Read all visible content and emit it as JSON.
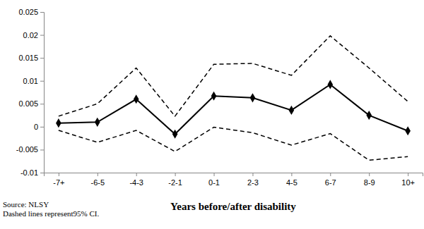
{
  "chart_data": {
    "type": "line",
    "x_label": "Years before/after disability",
    "annotations": [
      "Source: NLSY",
      "Dashed lines represent95% CI."
    ],
    "categories": [
      "-7+",
      "-6-5",
      "-4-3",
      "-2-1",
      "0-1",
      "2-3",
      "4-5",
      "6-7",
      "8-9",
      "10+"
    ],
    "series": [
      {
        "color": "#000000",
        "line_style": "solid",
        "marker": "diamond",
        "values": [
          0.0008,
          0.001,
          0.006,
          -0.0016,
          0.0067,
          0.0063,
          0.0036,
          0.0092,
          0.0025,
          -0.0009
        ]
      },
      {
        "color": "#000000",
        "line_style": "dashed",
        "marker": "none",
        "values": [
          0.0023,
          0.005,
          0.0128,
          0.0023,
          0.0136,
          0.0138,
          0.0112,
          0.0198,
          0.0128,
          0.0055
        ]
      },
      {
        "color": "#000000",
        "line_style": "dashed",
        "marker": "none",
        "values": [
          -0.0008,
          -0.0034,
          -0.0008,
          -0.0054,
          -0.0001,
          -0.0013,
          -0.004,
          -0.0015,
          -0.0073,
          -0.0065
        ]
      }
    ],
    "ylim": [
      -0.01,
      0.025
    ],
    "yticks": [
      -0.01,
      -0.005,
      0,
      0.005,
      0.01,
      0.015,
      0.02,
      0.025
    ],
    "grid": false
  }
}
